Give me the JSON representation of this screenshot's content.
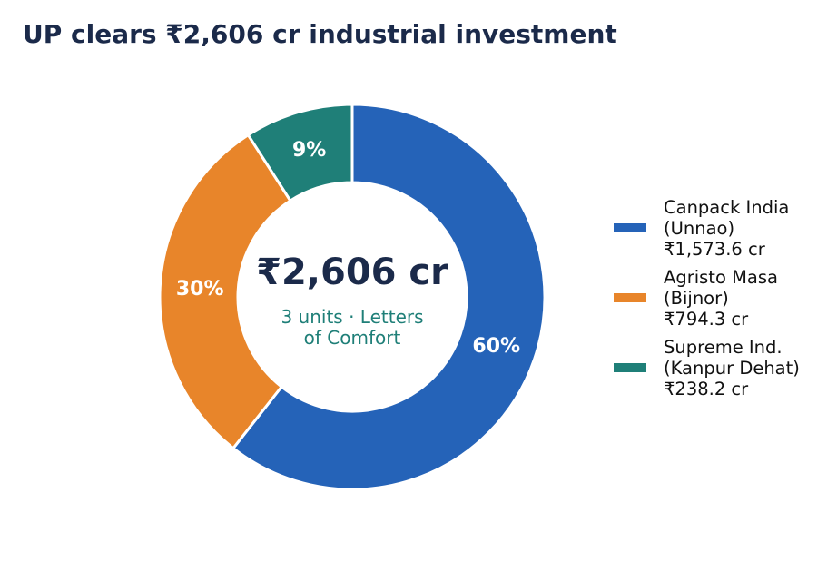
{
  "chart_data": {
    "type": "donut",
    "title": "UP clears ₹2,606 cr industrial investment",
    "center_title": "₹2,606 cr",
    "center_subtitle": "3 units · Letters\nof Comfort",
    "categories": [
      "Canpack India\n(Unnao)\n₹1,573.6 cr",
      "Agristo Masa\n(Bijnor)\n₹794.3 cr",
      "Supreme Ind.\n(Kanpur Dehat)\n₹238.2 cr"
    ],
    "values": [
      60,
      30,
      9
    ],
    "value_labels": [
      "60%",
      "30%",
      "9%"
    ],
    "colors": [
      "#2563b8",
      "#e8852a",
      "#1f7f78"
    ],
    "legend": "right"
  }
}
